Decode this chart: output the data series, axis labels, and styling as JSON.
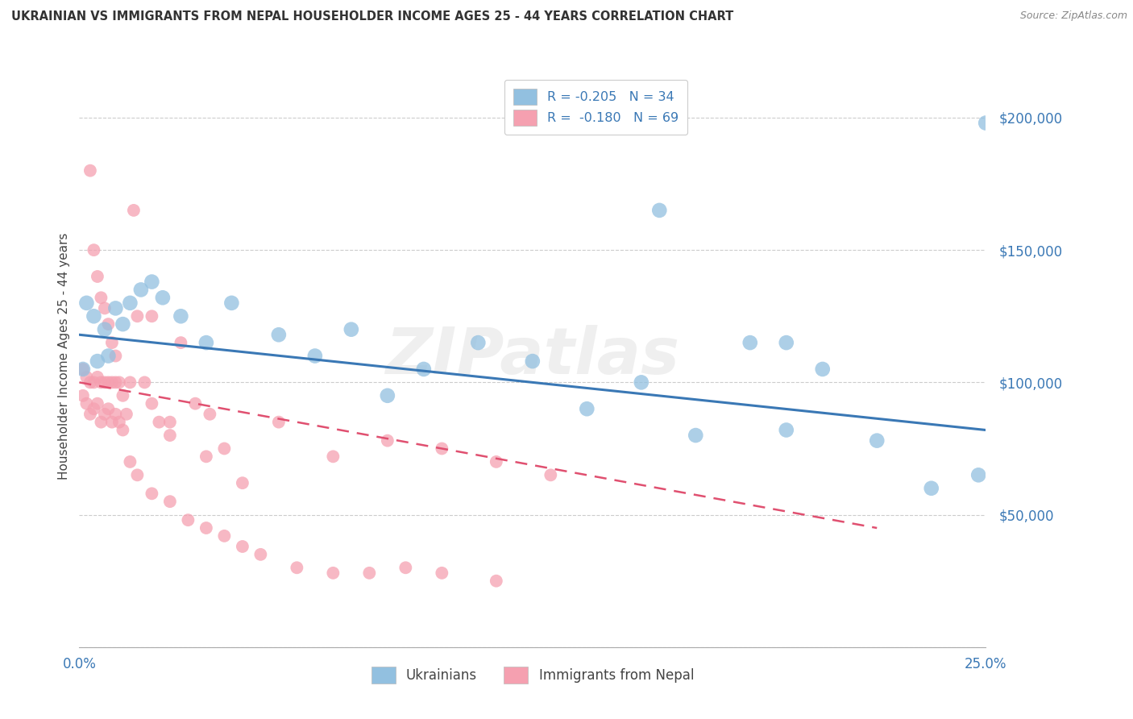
{
  "title": "UKRAINIAN VS IMMIGRANTS FROM NEPAL HOUSEHOLDER INCOME AGES 25 - 44 YEARS CORRELATION CHART",
  "source": "Source: ZipAtlas.com",
  "ylabel": "Householder Income Ages 25 - 44 years",
  "xmin": 0.0,
  "xmax": 0.25,
  "ymin": 0,
  "ymax": 220000,
  "yticks": [
    0,
    50000,
    100000,
    150000,
    200000
  ],
  "blue_color": "#92c0e0",
  "pink_color": "#f5a0b0",
  "blue_line_color": "#3a78b5",
  "pink_line_color": "#e05070",
  "label_color": "#3a78b5",
  "watermark": "ZIPatlas",
  "blue_line_x": [
    0.0,
    0.25
  ],
  "blue_line_y": [
    118000,
    82000
  ],
  "pink_line_x": [
    0.0,
    0.22
  ],
  "pink_line_y": [
    100000,
    45000
  ],
  "blue_scatter_x": [
    0.001,
    0.002,
    0.004,
    0.005,
    0.007,
    0.008,
    0.01,
    0.012,
    0.014,
    0.017,
    0.02,
    0.023,
    0.028,
    0.035,
    0.042,
    0.055,
    0.065,
    0.075,
    0.085,
    0.095,
    0.11,
    0.125,
    0.14,
    0.155,
    0.17,
    0.185,
    0.195,
    0.205,
    0.22,
    0.235,
    0.248,
    0.25,
    0.195,
    0.16
  ],
  "blue_scatter_y": [
    105000,
    130000,
    125000,
    108000,
    120000,
    110000,
    128000,
    122000,
    130000,
    135000,
    138000,
    132000,
    125000,
    115000,
    130000,
    118000,
    110000,
    120000,
    95000,
    105000,
    115000,
    108000,
    90000,
    100000,
    80000,
    115000,
    82000,
    105000,
    78000,
    60000,
    65000,
    198000,
    115000,
    165000
  ],
  "pink_scatter_x": [
    0.001,
    0.001,
    0.002,
    0.002,
    0.003,
    0.003,
    0.004,
    0.004,
    0.005,
    0.005,
    0.006,
    0.006,
    0.007,
    0.007,
    0.008,
    0.008,
    0.009,
    0.009,
    0.01,
    0.01,
    0.011,
    0.011,
    0.012,
    0.013,
    0.014,
    0.015,
    0.016,
    0.018,
    0.02,
    0.022,
    0.025,
    0.028,
    0.032,
    0.036,
    0.04,
    0.055,
    0.07,
    0.085,
    0.1,
    0.115,
    0.13,
    0.003,
    0.004,
    0.005,
    0.006,
    0.007,
    0.008,
    0.009,
    0.01,
    0.012,
    0.014,
    0.016,
    0.02,
    0.025,
    0.03,
    0.035,
    0.04,
    0.045,
    0.05,
    0.06,
    0.07,
    0.08,
    0.09,
    0.1,
    0.115,
    0.02,
    0.025,
    0.035,
    0.045
  ],
  "pink_scatter_y": [
    105000,
    95000,
    102000,
    92000,
    100000,
    88000,
    100000,
    90000,
    102000,
    92000,
    100000,
    85000,
    100000,
    88000,
    100000,
    90000,
    100000,
    85000,
    100000,
    88000,
    100000,
    85000,
    95000,
    88000,
    100000,
    165000,
    125000,
    100000,
    125000,
    85000,
    80000,
    115000,
    92000,
    88000,
    75000,
    85000,
    72000,
    78000,
    75000,
    70000,
    65000,
    180000,
    150000,
    140000,
    132000,
    128000,
    122000,
    115000,
    110000,
    82000,
    70000,
    65000,
    58000,
    55000,
    48000,
    45000,
    42000,
    38000,
    35000,
    30000,
    28000,
    28000,
    30000,
    28000,
    25000,
    92000,
    85000,
    72000,
    62000
  ]
}
